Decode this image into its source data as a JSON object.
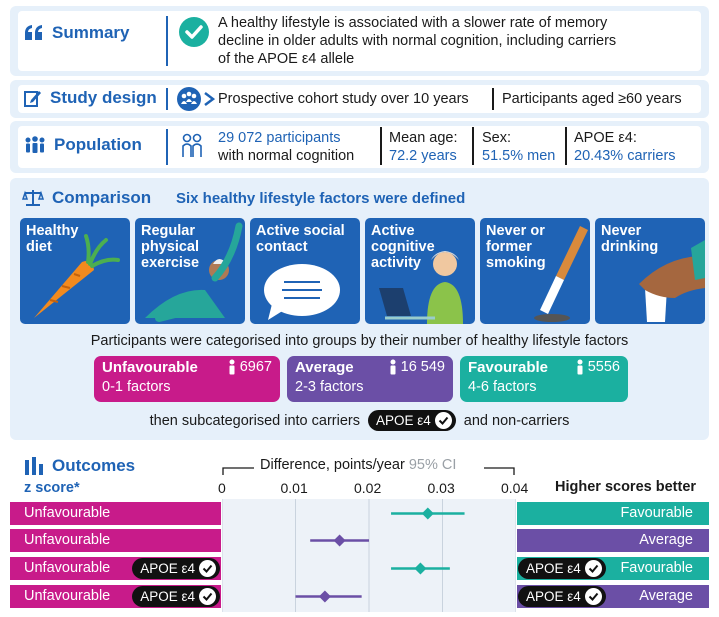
{
  "colors": {
    "blue": "#1f63b5",
    "light": "#e6f0fa",
    "magenta": "#c81b8a",
    "purple": "#6b4fa6",
    "teal": "#1bb0a0"
  },
  "summary": {
    "heading": "Summary",
    "lines": [
      "A healthy lifestyle is associated with a slower rate of memory",
      "decline in older adults with normal cognition, including carriers",
      "of the APOE ε4 allele"
    ]
  },
  "design": {
    "heading": "Study design",
    "item1": "Prospective cohort study over 10 years",
    "item2": "Participants aged ≥60 years"
  },
  "population": {
    "heading": "Population",
    "participants": "29 072 participants",
    "participants_sub": "with normal cognition",
    "age_label": "Mean age:",
    "age_value": "72.2 years",
    "sex_label": "Sex:",
    "sex_value": "51.5% men",
    "apoe_label": "APOE ε4:",
    "apoe_value": "20.43% carriers"
  },
  "comparison": {
    "heading": "Comparison",
    "subheading": "Six healthy lifestyle factors were defined",
    "factors": [
      {
        "label": [
          "Healthy",
          "diet"
        ]
      },
      {
        "label": [
          "Regular",
          "physical",
          "exercise"
        ]
      },
      {
        "label": [
          "Active social",
          "contact"
        ]
      },
      {
        "label": [
          "Active",
          "cognitive",
          "activity"
        ]
      },
      {
        "label": [
          "Never or",
          "former",
          "smoking"
        ]
      },
      {
        "label": [
          "Never",
          "drinking"
        ]
      }
    ],
    "groups_text": "Participants were categorised into groups by their number of healthy lifestyle factors",
    "groups": [
      {
        "name": "Unfavourable",
        "factors": "0-1 factors",
        "count": "6967"
      },
      {
        "name": "Average",
        "factors": "2-3 factors",
        "count": "16 549"
      },
      {
        "name": "Favourable",
        "factors": "4-6 factors",
        "count": "5556"
      }
    ],
    "sub_before": "then subcategorised into carriers",
    "sub_after": "and non-carriers",
    "apoe_pill": "APOE ε4"
  },
  "outcomes": {
    "heading": "Outcomes",
    "zscore": "z score*",
    "axis_title": "Difference, points/year",
    "ci_label": "95% CI",
    "higher": "Higher scores better",
    "ticks": [
      "0",
      "0.01",
      "0.02",
      "0.03",
      "0.04"
    ],
    "rows": [
      {
        "left": "Unfavourable",
        "right": "Favourable",
        "apoe": false,
        "point": 0.028,
        "lo": 0.023,
        "hi": 0.033,
        "color": "#1bb0a0"
      },
      {
        "left": "Unfavourable",
        "right": "Average",
        "apoe": false,
        "point": 0.016,
        "lo": 0.012,
        "hi": 0.02,
        "color": "#6b4fa6"
      },
      {
        "left": "Unfavourable",
        "right": "Favourable",
        "apoe": true,
        "point": 0.027,
        "lo": 0.023,
        "hi": 0.031,
        "color": "#1bb0a0"
      },
      {
        "left": "Unfavourable",
        "right": "Average",
        "apoe": true,
        "point": 0.014,
        "lo": 0.01,
        "hi": 0.019,
        "color": "#6b4fa6"
      }
    ]
  },
  "chart_data": {
    "type": "scatter",
    "xlabel": "Difference, points/year",
    "xlim": [
      0,
      0.04
    ],
    "ticks": [
      0,
      0.01,
      0.02,
      0.03,
      0.04
    ],
    "series": [
      {
        "name": "Favourable",
        "values": [
          0.028
        ]
      },
      {
        "name": "Average",
        "values": [
          0.016
        ]
      },
      {
        "name": "APOE ε4 Favourable",
        "values": [
          0.027
        ]
      },
      {
        "name": "APOE ε4 Average",
        "values": [
          0.014
        ]
      }
    ]
  }
}
